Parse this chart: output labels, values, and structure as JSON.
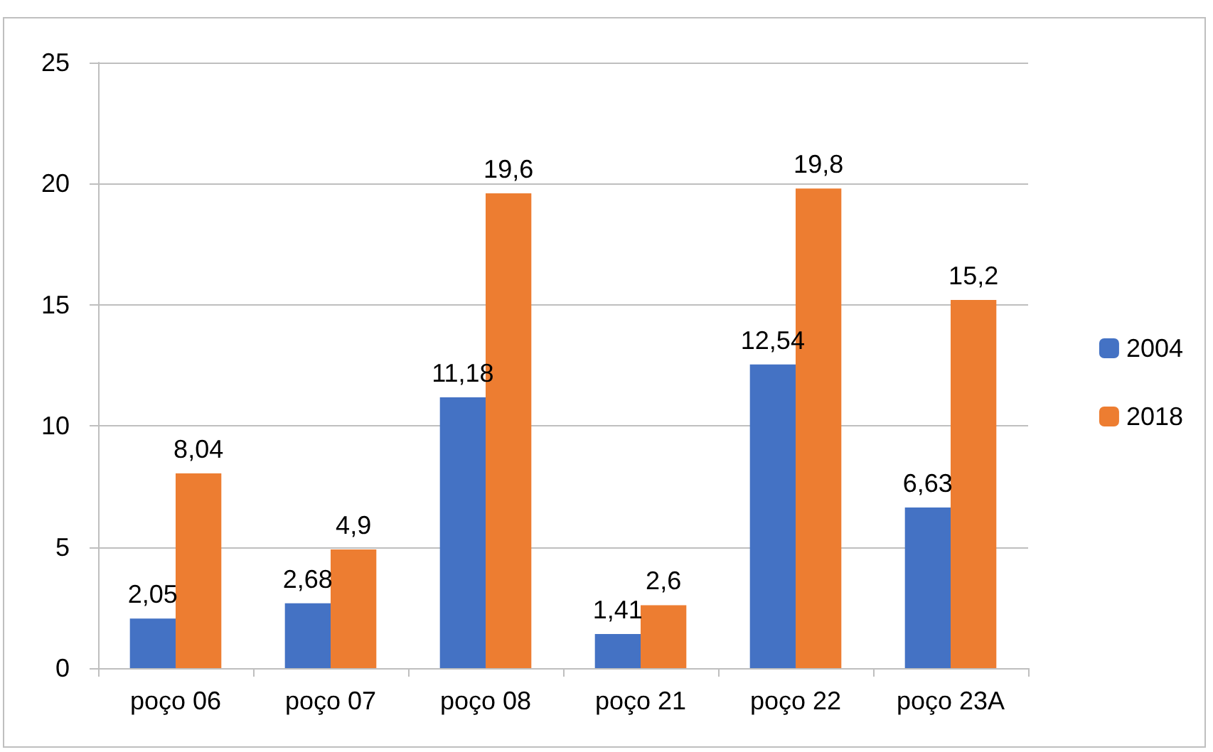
{
  "chart_data": {
    "type": "bar",
    "categories": [
      "poço 06",
      "poço 07",
      "poço 08",
      "poço 21",
      "poço 22",
      "poço 23A"
    ],
    "series": [
      {
        "name": "2004",
        "color": "#4472c4",
        "values": [
          2.05,
          2.68,
          11.18,
          1.41,
          12.54,
          6.63
        ],
        "value_labels": [
          "2,05",
          "2,68",
          "11,18",
          "1,41",
          "12,54",
          "6,63"
        ]
      },
      {
        "name": "2018",
        "color": "#ed7d31",
        "values": [
          8.04,
          4.9,
          19.6,
          2.6,
          19.8,
          15.2
        ],
        "value_labels": [
          "8,04",
          "4,9",
          "19,6",
          "2,6",
          "19,8",
          "15,2"
        ]
      }
    ],
    "ylim": [
      0,
      25
    ],
    "yticks": [
      0,
      5,
      10,
      15,
      20,
      25
    ],
    "grid": "y",
    "legend": "right"
  }
}
